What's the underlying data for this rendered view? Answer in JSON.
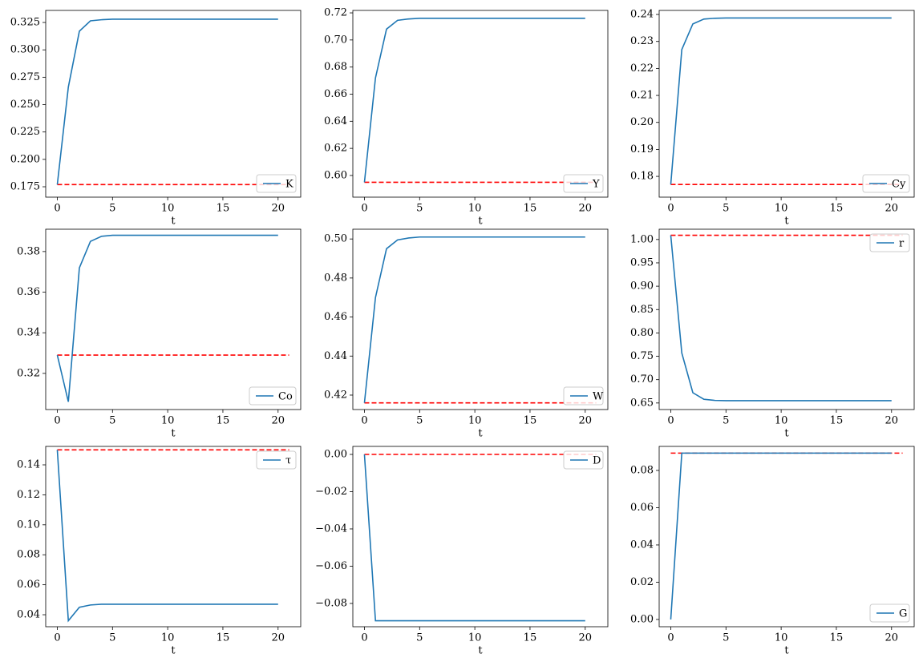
{
  "chart_data": [
    {
      "type": "line",
      "x": [
        0,
        1,
        2,
        3,
        4,
        5,
        6,
        7,
        8,
        9,
        10,
        11,
        12,
        13,
        14,
        15,
        16,
        17,
        18,
        19,
        20
      ],
      "series": [
        {
          "name": "K",
          "color": "#1f77b4",
          "values": [
            0.177,
            0.266,
            0.317,
            0.3265,
            0.3275,
            0.328,
            0.328,
            0.328,
            0.328,
            0.328,
            0.328,
            0.328,
            0.328,
            0.328,
            0.328,
            0.328,
            0.328,
            0.328,
            0.328,
            0.328,
            0.328
          ]
        }
      ],
      "hline": {
        "value": 0.177,
        "x": [
          0,
          21
        ],
        "color": "#ff0000"
      },
      "xlim": [
        -1.05,
        22.05
      ],
      "ylim": [
        0.1655,
        0.336
      ],
      "xticks": [
        0,
        5,
        10,
        15,
        20
      ],
      "yticks": [
        0.175,
        {
          "value": 0.2,
          "label": "0.200"
        },
        0.225,
        {
          "value": 0.25,
          "label": "0.250"
        },
        0.275,
        {
          "value": 0.3,
          "label": "0.300"
        },
        0.325
      ],
      "xlabel": "t",
      "legend": "lower right"
    },
    {
      "type": "line",
      "x": [
        0,
        1,
        2,
        3,
        4,
        5,
        6,
        7,
        8,
        9,
        10,
        11,
        12,
        13,
        14,
        15,
        16,
        17,
        18,
        19,
        20
      ],
      "series": [
        {
          "name": "Y",
          "color": "#1f77b4",
          "values": [
            0.595,
            0.672,
            0.708,
            0.7145,
            0.7155,
            0.716,
            0.716,
            0.716,
            0.716,
            0.716,
            0.716,
            0.716,
            0.716,
            0.716,
            0.716,
            0.716,
            0.716,
            0.716,
            0.716,
            0.716,
            0.716
          ]
        }
      ],
      "hline": {
        "value": 0.595,
        "x": [
          0,
          21
        ],
        "color": "#ff0000"
      },
      "xlim": [
        -1.05,
        22.05
      ],
      "ylim": [
        0.584,
        0.7218
      ],
      "xticks": [
        0,
        5,
        10,
        15,
        20
      ],
      "yticks": [
        {
          "value": 0.6,
          "label": "0.60"
        },
        0.62,
        0.64,
        0.66,
        0.68,
        {
          "value": 0.7,
          "label": "0.70"
        },
        0.72
      ],
      "xlabel": "t",
      "legend": "lower right"
    },
    {
      "type": "line",
      "x": [
        0,
        1,
        2,
        3,
        4,
        5,
        6,
        7,
        8,
        9,
        10,
        11,
        12,
        13,
        14,
        15,
        16,
        17,
        18,
        19,
        20
      ],
      "series": [
        {
          "name": "Cy",
          "color": "#1f77b4",
          "values": [
            0.177,
            0.227,
            0.2365,
            0.2383,
            0.2386,
            0.2387,
            0.2387,
            0.2387,
            0.2387,
            0.2387,
            0.2387,
            0.2387,
            0.2387,
            0.2387,
            0.2387,
            0.2387,
            0.2387,
            0.2387,
            0.2387,
            0.2387,
            0.2387
          ]
        }
      ],
      "hline": {
        "value": 0.177,
        "x": [
          0,
          21
        ],
        "color": "#ff0000"
      },
      "xlim": [
        -1.05,
        22.05
      ],
      "ylim": [
        0.1723,
        0.2415
      ],
      "xticks": [
        0,
        5,
        10,
        15,
        20
      ],
      "yticks": [
        0.18,
        0.19,
        {
          "value": 0.2,
          "label": "0.20"
        },
        0.21,
        0.22,
        0.23,
        0.24
      ],
      "xlabel": "t",
      "legend": "lower right"
    },
    {
      "type": "line",
      "x": [
        0,
        1,
        2,
        3,
        4,
        5,
        6,
        7,
        8,
        9,
        10,
        11,
        12,
        13,
        14,
        15,
        16,
        17,
        18,
        19,
        20
      ],
      "series": [
        {
          "name": "Co",
          "color": "#1f77b4",
          "values": [
            0.329,
            0.306,
            0.372,
            0.385,
            0.3875,
            0.388,
            0.388,
            0.388,
            0.388,
            0.388,
            0.388,
            0.388,
            0.388,
            0.388,
            0.388,
            0.388,
            0.388,
            0.388,
            0.388,
            0.388,
            0.388
          ]
        }
      ],
      "hline": {
        "value": 0.329,
        "x": [
          0,
          21
        ],
        "color": "#ff0000"
      },
      "xlim": [
        -1.05,
        22.05
      ],
      "ylim": [
        0.3022,
        0.391
      ],
      "xticks": [
        0,
        5,
        10,
        15,
        20
      ],
      "yticks": [
        0.32,
        0.34,
        0.36,
        0.38
      ],
      "xlabel": "t",
      "legend": "lower right"
    },
    {
      "type": "line",
      "x": [
        0,
        1,
        2,
        3,
        4,
        5,
        6,
        7,
        8,
        9,
        10,
        11,
        12,
        13,
        14,
        15,
        16,
        17,
        18,
        19,
        20
      ],
      "series": [
        {
          "name": "W",
          "color": "#1f77b4",
          "values": [
            0.416,
            0.47,
            0.495,
            0.4995,
            0.5005,
            0.501,
            0.501,
            0.501,
            0.501,
            0.501,
            0.501,
            0.501,
            0.501,
            0.501,
            0.501,
            0.501,
            0.501,
            0.501,
            0.501,
            0.501,
            0.501
          ]
        }
      ],
      "hline": {
        "value": 0.416,
        "x": [
          0,
          21
        ],
        "color": "#ff0000"
      },
      "xlim": [
        -1.05,
        22.05
      ],
      "ylim": [
        0.4126,
        0.505
      ],
      "xticks": [
        0,
        5,
        10,
        15,
        20
      ],
      "yticks": [
        0.42,
        0.44,
        0.46,
        0.48,
        {
          "value": 0.5,
          "label": "0.50"
        }
      ],
      "xlabel": "t",
      "legend": "lower right"
    },
    {
      "type": "line",
      "x": [
        0,
        1,
        2,
        3,
        4,
        5,
        6,
        7,
        8,
        9,
        10,
        11,
        12,
        13,
        14,
        15,
        16,
        17,
        18,
        19,
        20
      ],
      "series": [
        {
          "name": "r",
          "color": "#1f77b4",
          "values": [
            1.009,
            0.757,
            0.672,
            0.658,
            0.6555,
            0.655,
            0.655,
            0.655,
            0.655,
            0.655,
            0.655,
            0.655,
            0.655,
            0.655,
            0.655,
            0.655,
            0.655,
            0.655,
            0.655,
            0.655,
            0.655
          ]
        }
      ],
      "hline": {
        "value": 1.009,
        "x": [
          0,
          21
        ],
        "color": "#ff0000"
      },
      "xlim": [
        -1.05,
        22.05
      ],
      "ylim": [
        0.636,
        1.022
      ],
      "xticks": [
        0,
        5,
        10,
        15,
        20
      ],
      "yticks": [
        0.65,
        {
          "value": 0.7,
          "label": "0.70"
        },
        0.75,
        {
          "value": 0.8,
          "label": "0.80"
        },
        0.85,
        {
          "value": 0.9,
          "label": "0.90"
        },
        0.95,
        {
          "value": 1,
          "label": "1.00"
        }
      ],
      "xlabel": "t",
      "legend": "upper right"
    },
    {
      "type": "line",
      "x": [
        0,
        1,
        2,
        3,
        4,
        5,
        6,
        7,
        8,
        9,
        10,
        11,
        12,
        13,
        14,
        15,
        16,
        17,
        18,
        19,
        20
      ],
      "series": [
        {
          "name": "τ",
          "color": "#1f77b4",
          "values": [
            0.15,
            0.036,
            0.045,
            0.0465,
            0.047,
            0.047,
            0.047,
            0.047,
            0.047,
            0.047,
            0.047,
            0.047,
            0.047,
            0.047,
            0.047,
            0.047,
            0.047,
            0.047,
            0.047,
            0.047,
            0.047
          ]
        }
      ],
      "hline": {
        "value": 0.15,
        "x": [
          0,
          21
        ],
        "color": "#ff0000"
      },
      "xlim": [
        -1.05,
        22.05
      ],
      "ylim": [
        0.032,
        0.1523
      ],
      "xticks": [
        0,
        5,
        10,
        15,
        20
      ],
      "yticks": [
        0.04,
        0.06,
        0.08,
        {
          "value": 0.1,
          "label": "0.10"
        },
        0.12,
        0.14
      ],
      "xlabel": "t",
      "legend": "upper right"
    },
    {
      "type": "line",
      "x": [
        0,
        1,
        2,
        3,
        4,
        5,
        6,
        7,
        8,
        9,
        10,
        11,
        12,
        13,
        14,
        15,
        16,
        17,
        18,
        19,
        20
      ],
      "series": [
        {
          "name": "D",
          "color": "#1f77b4",
          "values": [
            0,
            -0.0893,
            -0.0893,
            -0.0893,
            -0.0893,
            -0.0893,
            -0.0893,
            -0.0893,
            -0.0893,
            -0.0893,
            -0.0893,
            -0.0893,
            -0.0893,
            -0.0893,
            -0.0893,
            -0.0893,
            -0.0893,
            -0.0893,
            -0.0893,
            -0.0893,
            -0.0893
          ]
        }
      ],
      "hline": {
        "value": 0,
        "x": [
          0,
          21
        ],
        "color": "#ff0000"
      },
      "xlim": [
        -1.05,
        22.05
      ],
      "ylim": [
        -0.0925,
        0.0043
      ],
      "xticks": [
        0,
        5,
        10,
        15,
        20
      ],
      "yticks": [
        {
          "value": 0,
          "label": "0.00"
        },
        {
          "value": -0.02,
          "label": "−0.02"
        },
        {
          "value": -0.04,
          "label": "−0.04"
        },
        {
          "value": -0.06,
          "label": "−0.06"
        },
        {
          "value": -0.08,
          "label": "−0.08"
        }
      ],
      "xlabel": "t",
      "legend": "upper right"
    },
    {
      "type": "line",
      "x": [
        0,
        1,
        2,
        3,
        4,
        5,
        6,
        7,
        8,
        9,
        10,
        11,
        12,
        13,
        14,
        15,
        16,
        17,
        18,
        19,
        20
      ],
      "series": [
        {
          "name": "G",
          "color": "#1f77b4",
          "values": [
            0,
            0.0893,
            0.0893,
            0.0893,
            0.0893,
            0.0893,
            0.0893,
            0.0893,
            0.0893,
            0.0893,
            0.0893,
            0.0893,
            0.0893,
            0.0893,
            0.0893,
            0.0893,
            0.0893,
            0.0893,
            0.0893,
            0.0893,
            0.0893
          ]
        }
      ],
      "hline": {
        "value": 0.0893,
        "x": [
          0,
          21
        ],
        "color": "#ff0000"
      },
      "xlim": [
        -1.05,
        22.05
      ],
      "ylim": [
        -0.0039,
        0.0929
      ],
      "xticks": [
        0,
        5,
        10,
        15,
        20
      ],
      "yticks": [
        {
          "value": 0,
          "label": "0.00"
        },
        0.02,
        0.04,
        0.06,
        0.08
      ],
      "xlabel": "t",
      "legend": "lower right"
    }
  ]
}
